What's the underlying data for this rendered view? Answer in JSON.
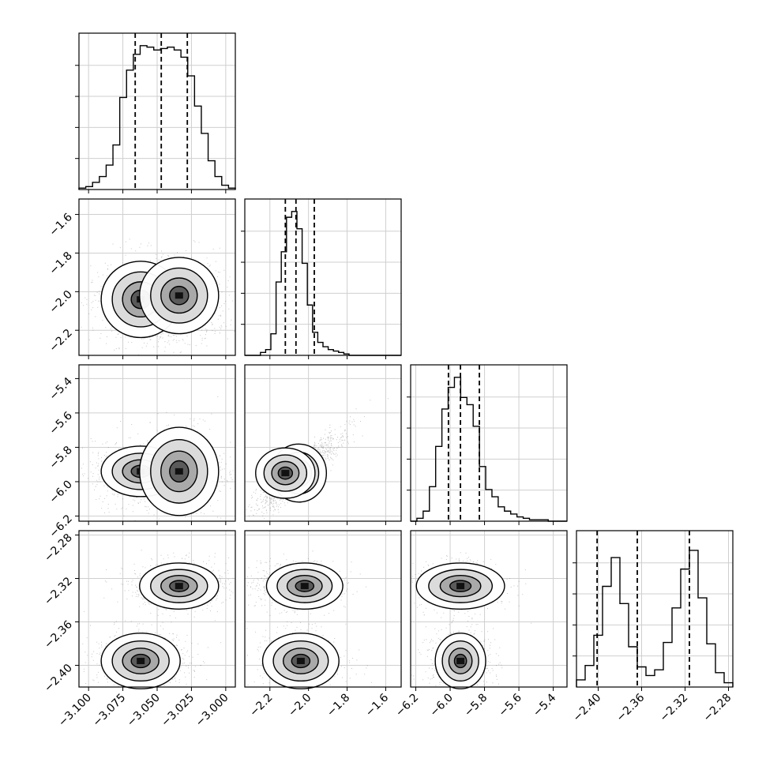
{
  "chart_data": {
    "type": "corner",
    "parameters": [
      {
        "range": [
          -3.107,
          -2.993
        ],
        "ticks": [
          -3.1,
          -3.075,
          -3.05,
          -3.025,
          -3.0
        ],
        "tick_labels": [
          "−3.100",
          "−3.075",
          "−3.050",
          "−3.025",
          "−3.000"
        ],
        "quantiles": [
          -3.066,
          -3.047,
          -3.028
        ]
      },
      {
        "range": [
          -2.33,
          -1.52
        ],
        "ticks": [
          -2.2,
          -2.0,
          -1.8,
          -1.6
        ],
        "tick_labels": [
          "−2.2",
          "−2.0",
          "−1.8",
          "−1.6"
        ],
        "quantiles": [
          -2.12,
          -2.065,
          -1.97
        ]
      },
      {
        "range": [
          -6.23,
          -5.32
        ],
        "ticks": [
          -6.2,
          -6.0,
          -5.8,
          -5.6,
          -5.4
        ],
        "tick_labels": [
          "−6.2",
          "−6.0",
          "−5.8",
          "−5.6",
          "−5.4"
        ],
        "quantiles": [
          -6.01,
          -5.94,
          -5.83
        ]
      },
      {
        "range": [
          -2.42,
          -2.276
        ],
        "ticks": [
          -2.4,
          -2.36,
          -2.32,
          -2.28
        ],
        "tick_labels": [
          "−2.40",
          "−2.36",
          "−2.32",
          "−2.28"
        ],
        "quantiles": [
          -2.401,
          -2.364,
          -2.316
        ]
      }
    ],
    "histograms": [
      [
        0.01,
        0.02,
        0.05,
        0.09,
        0.17,
        0.31,
        0.64,
        0.83,
        0.94,
        1.0,
        0.99,
        0.97,
        0.98,
        0.99,
        0.97,
        0.92,
        0.79,
        0.58,
        0.39,
        0.2,
        0.09,
        0.03,
        0.01
      ],
      [
        0.0,
        0.0,
        0.0,
        0.02,
        0.04,
        0.15,
        0.51,
        0.72,
        0.96,
        1.0,
        0.88,
        0.64,
        0.35,
        0.16,
        0.09,
        0.06,
        0.04,
        0.03,
        0.02,
        0.01,
        0.0,
        0.0,
        0.0,
        0.0,
        0.0,
        0.0,
        0.0,
        0.0,
        0.0,
        0.0
      ],
      [
        0.0,
        0.02,
        0.07,
        0.24,
        0.52,
        0.78,
        0.93,
        1.0,
        0.86,
        0.81,
        0.66,
        0.38,
        0.22,
        0.17,
        0.1,
        0.07,
        0.05,
        0.03,
        0.02,
        0.01,
        0.01,
        0.01,
        0.0,
        0.0,
        0.0
      ],
      [
        0.05,
        0.15,
        0.36,
        0.7,
        0.9,
        0.58,
        0.28,
        0.14,
        0.08,
        0.12,
        0.31,
        0.55,
        0.82,
        0.95,
        0.62,
        0.3,
        0.1,
        0.03
      ]
    ],
    "modes": [
      [
        {
          "w": 0.5,
          "mu": [
            -3.062,
            -2.04,
            -5.94,
            -2.396
          ],
          "sd": [
            0.011,
            0.075,
            0.05,
            0.009
          ]
        },
        {
          "w": 0.5,
          "mu": [
            -3.034,
            -2.02,
            -5.94,
            -2.327
          ],
          "sd": [
            0.011,
            0.075,
            0.1,
            0.007
          ]
        }
      ],
      [
        {
          "w": 0.6,
          "mu": [
            -3.062,
            -2.05,
            -5.95,
            -2.396
          ],
          "sd": [
            0.011,
            0.05,
            0.06,
            0.009
          ]
        },
        {
          "w": 0.4,
          "mu": [
            -3.034,
            -2.12,
            -5.95,
            -2.325
          ],
          "sd": [
            0.011,
            0.055,
            0.05,
            0.007
          ]
        }
      ]
    ],
    "grid": true,
    "quantile_lines": "dashed",
    "title": "",
    "xlabel": "",
    "ylabel": ""
  }
}
